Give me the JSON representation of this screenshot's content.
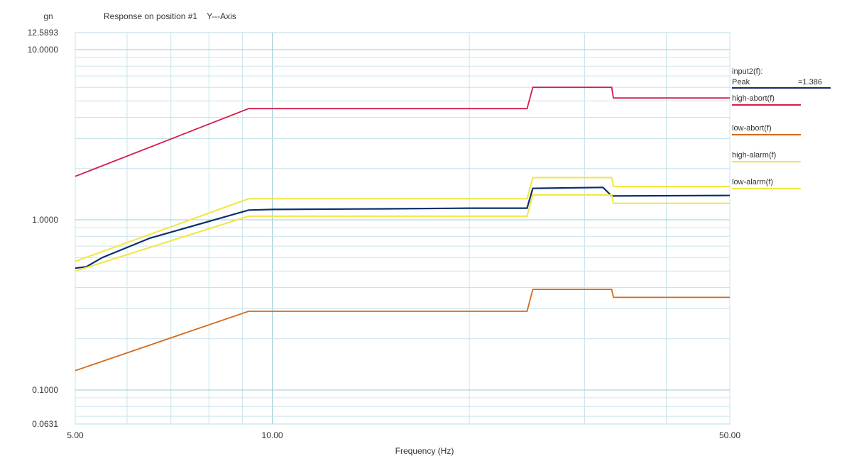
{
  "chart_data": {
    "type": "line",
    "title": "Response on position #1    Y---Axis",
    "ylabel": "gn",
    "xlabel": "Frequency (Hz)",
    "x_scale": "log",
    "y_scale": "log",
    "xlim": [
      5,
      50
    ],
    "ylim": [
      0.0631,
      12.5893
    ],
    "x_ticks": [
      5,
      10,
      50
    ],
    "x_tick_labels": [
      "5.00",
      "10.00",
      "50.00"
    ],
    "y_ticks": [
      12.5893,
      10,
      1,
      0.1,
      0.0631
    ],
    "y_tick_labels": [
      "12.5893",
      "10.0000",
      "1.0000",
      "0.1000",
      "0.0631"
    ],
    "grid": true,
    "legend_position": "right",
    "legend_header": "input2(f):",
    "peak_label": "Peak",
    "peak_value": "=1.386",
    "series": [
      {
        "name": "input2(f)",
        "color": "#0b2e6e",
        "x": [
          5.0,
          5.2,
          5.5,
          6.5,
          9.2,
          10.0,
          15.0,
          20.0,
          24.5,
          25.0,
          32.0,
          33.0,
          50.0
        ],
        "y": [
          0.52,
          0.53,
          0.6,
          0.78,
          1.14,
          1.15,
          1.16,
          1.17,
          1.17,
          1.53,
          1.55,
          1.38,
          1.39
        ]
      },
      {
        "name": "high-abort(f)",
        "color": "#d91a4a",
        "x": [
          5.0,
          9.2,
          24.5,
          25.0,
          33.0,
          33.2,
          50.0
        ],
        "y": [
          1.8,
          4.5,
          4.5,
          6.0,
          6.0,
          5.2,
          5.2
        ]
      },
      {
        "name": "low-abort(f)",
        "color": "#d46a1a",
        "x": [
          5.0,
          9.2,
          24.5,
          25.0,
          33.0,
          33.2,
          50.0
        ],
        "y": [
          0.13,
          0.29,
          0.29,
          0.39,
          0.39,
          0.35,
          0.35
        ]
      },
      {
        "name": "high-alarm(f)",
        "color": "#f2e640",
        "x": [
          5.0,
          9.2,
          20.0,
          24.5,
          25.0,
          33.0,
          33.2,
          50.0
        ],
        "y": [
          0.57,
          1.33,
          1.33,
          1.33,
          1.77,
          1.77,
          1.57,
          1.57
        ]
      },
      {
        "name": "low-alarm(f)",
        "color": "#f2e640",
        "x": [
          5.0,
          9.2,
          20.0,
          24.5,
          25.0,
          33.0,
          33.2,
          50.0
        ],
        "y": [
          0.5,
          1.05,
          1.05,
          1.05,
          1.4,
          1.4,
          1.25,
          1.25
        ]
      }
    ]
  }
}
